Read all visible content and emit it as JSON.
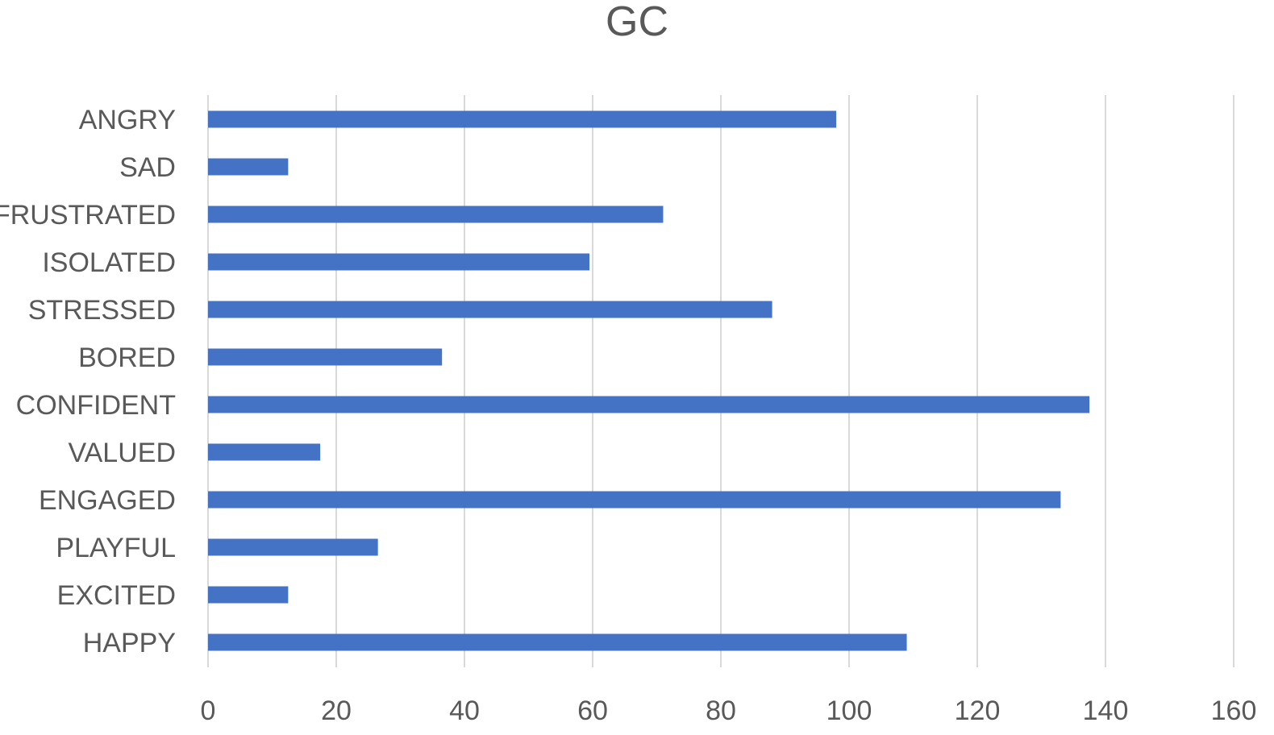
{
  "chart_data": {
    "type": "bar",
    "orientation": "horizontal",
    "title": "GC",
    "xlabel": "",
    "ylabel": "",
    "categories": [
      "ANGRY",
      "SAD",
      "FRUSTRATED",
      "ISOLATED",
      "STRESSED",
      "BORED",
      "CONFIDENT",
      "VALUED",
      "ENGAGED",
      "PLAYFUL",
      "EXCITED",
      "HAPPY"
    ],
    "values": [
      98,
      12.5,
      71,
      59.5,
      88,
      36.5,
      137.5,
      17.5,
      133,
      26.5,
      12.5,
      109
    ],
    "xlim": [
      0,
      160
    ],
    "x_ticks": [
      "0",
      "20",
      "40",
      "60",
      "80",
      "100",
      "120",
      "140",
      "160"
    ],
    "grid": "vertical",
    "legend": "none",
    "colors": {
      "bar": "#4472c4",
      "grid": "#d9d9d9",
      "text": "#595959"
    }
  }
}
